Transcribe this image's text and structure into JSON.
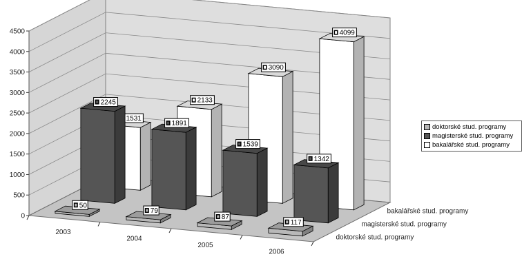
{
  "chart_data": {
    "type": "bar",
    "title": "",
    "xlabel": "",
    "ylabel": "",
    "ylim": [
      0,
      4500
    ],
    "yticks": [
      0,
      500,
      1000,
      1500,
      2000,
      2500,
      3000,
      3500,
      4000,
      4500
    ],
    "grid": true,
    "legend_position": "right",
    "categories": [
      "2003",
      "2004",
      "2005",
      "2006"
    ],
    "series": [
      {
        "name": "doktorské stud. programy",
        "values": [
          50,
          79,
          87,
          117
        ],
        "color": "#b8b8b8"
      },
      {
        "name": "magisterské stud. programy",
        "values": [
          2245,
          1891,
          1539,
          1342
        ],
        "color": "#555555"
      },
      {
        "name": "bakalářské stud. programy",
        "values": [
          1531,
          2133,
          3090,
          4099
        ],
        "color": "#ffffff"
      }
    ],
    "depth_labels": [
      "bakalářské stud. programy",
      "magisterské stud. programy",
      "doktorské stud. programy"
    ]
  }
}
